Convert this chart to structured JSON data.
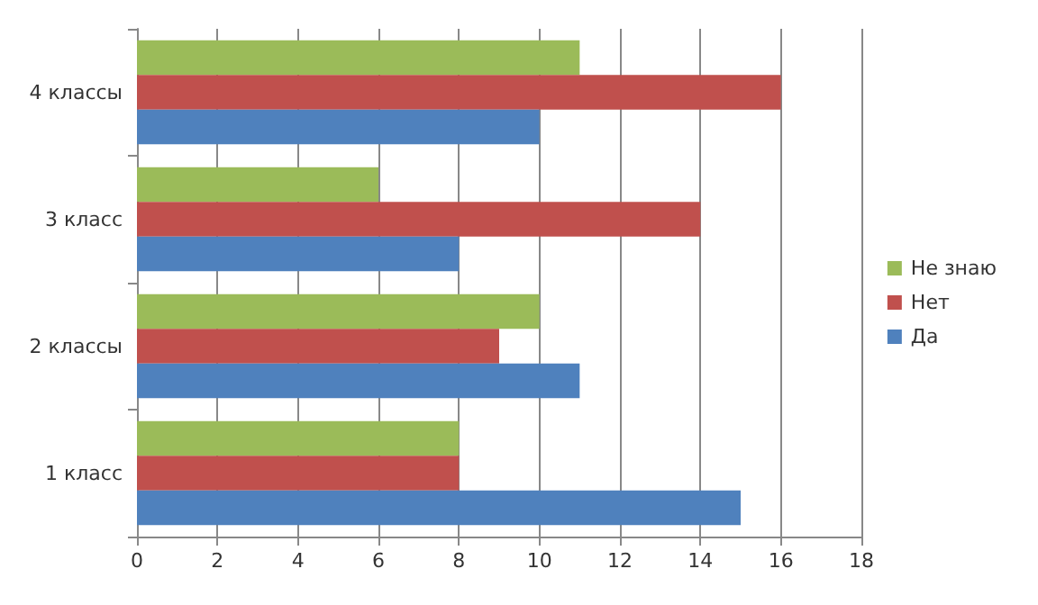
{
  "chart_data": {
    "type": "bar",
    "orientation": "horizontal",
    "categories": [
      "4 классы",
      "3 класс",
      "2 классы",
      "1 класс"
    ],
    "series": [
      {
        "name": "Не знаю",
        "color": "#9bbb59",
        "values": [
          11,
          6,
          10,
          8
        ]
      },
      {
        "name": "Нет",
        "color": "#c0504d",
        "values": [
          16,
          14,
          9,
          8
        ]
      },
      {
        "name": "Да",
        "color": "#4f81bd",
        "values": [
          10,
          8,
          11,
          15
        ]
      }
    ],
    "xlim": [
      0,
      18
    ],
    "xticks": [
      0,
      2,
      4,
      6,
      8,
      10,
      12,
      14,
      16,
      18
    ],
    "grid": "x",
    "legend": "right"
  }
}
